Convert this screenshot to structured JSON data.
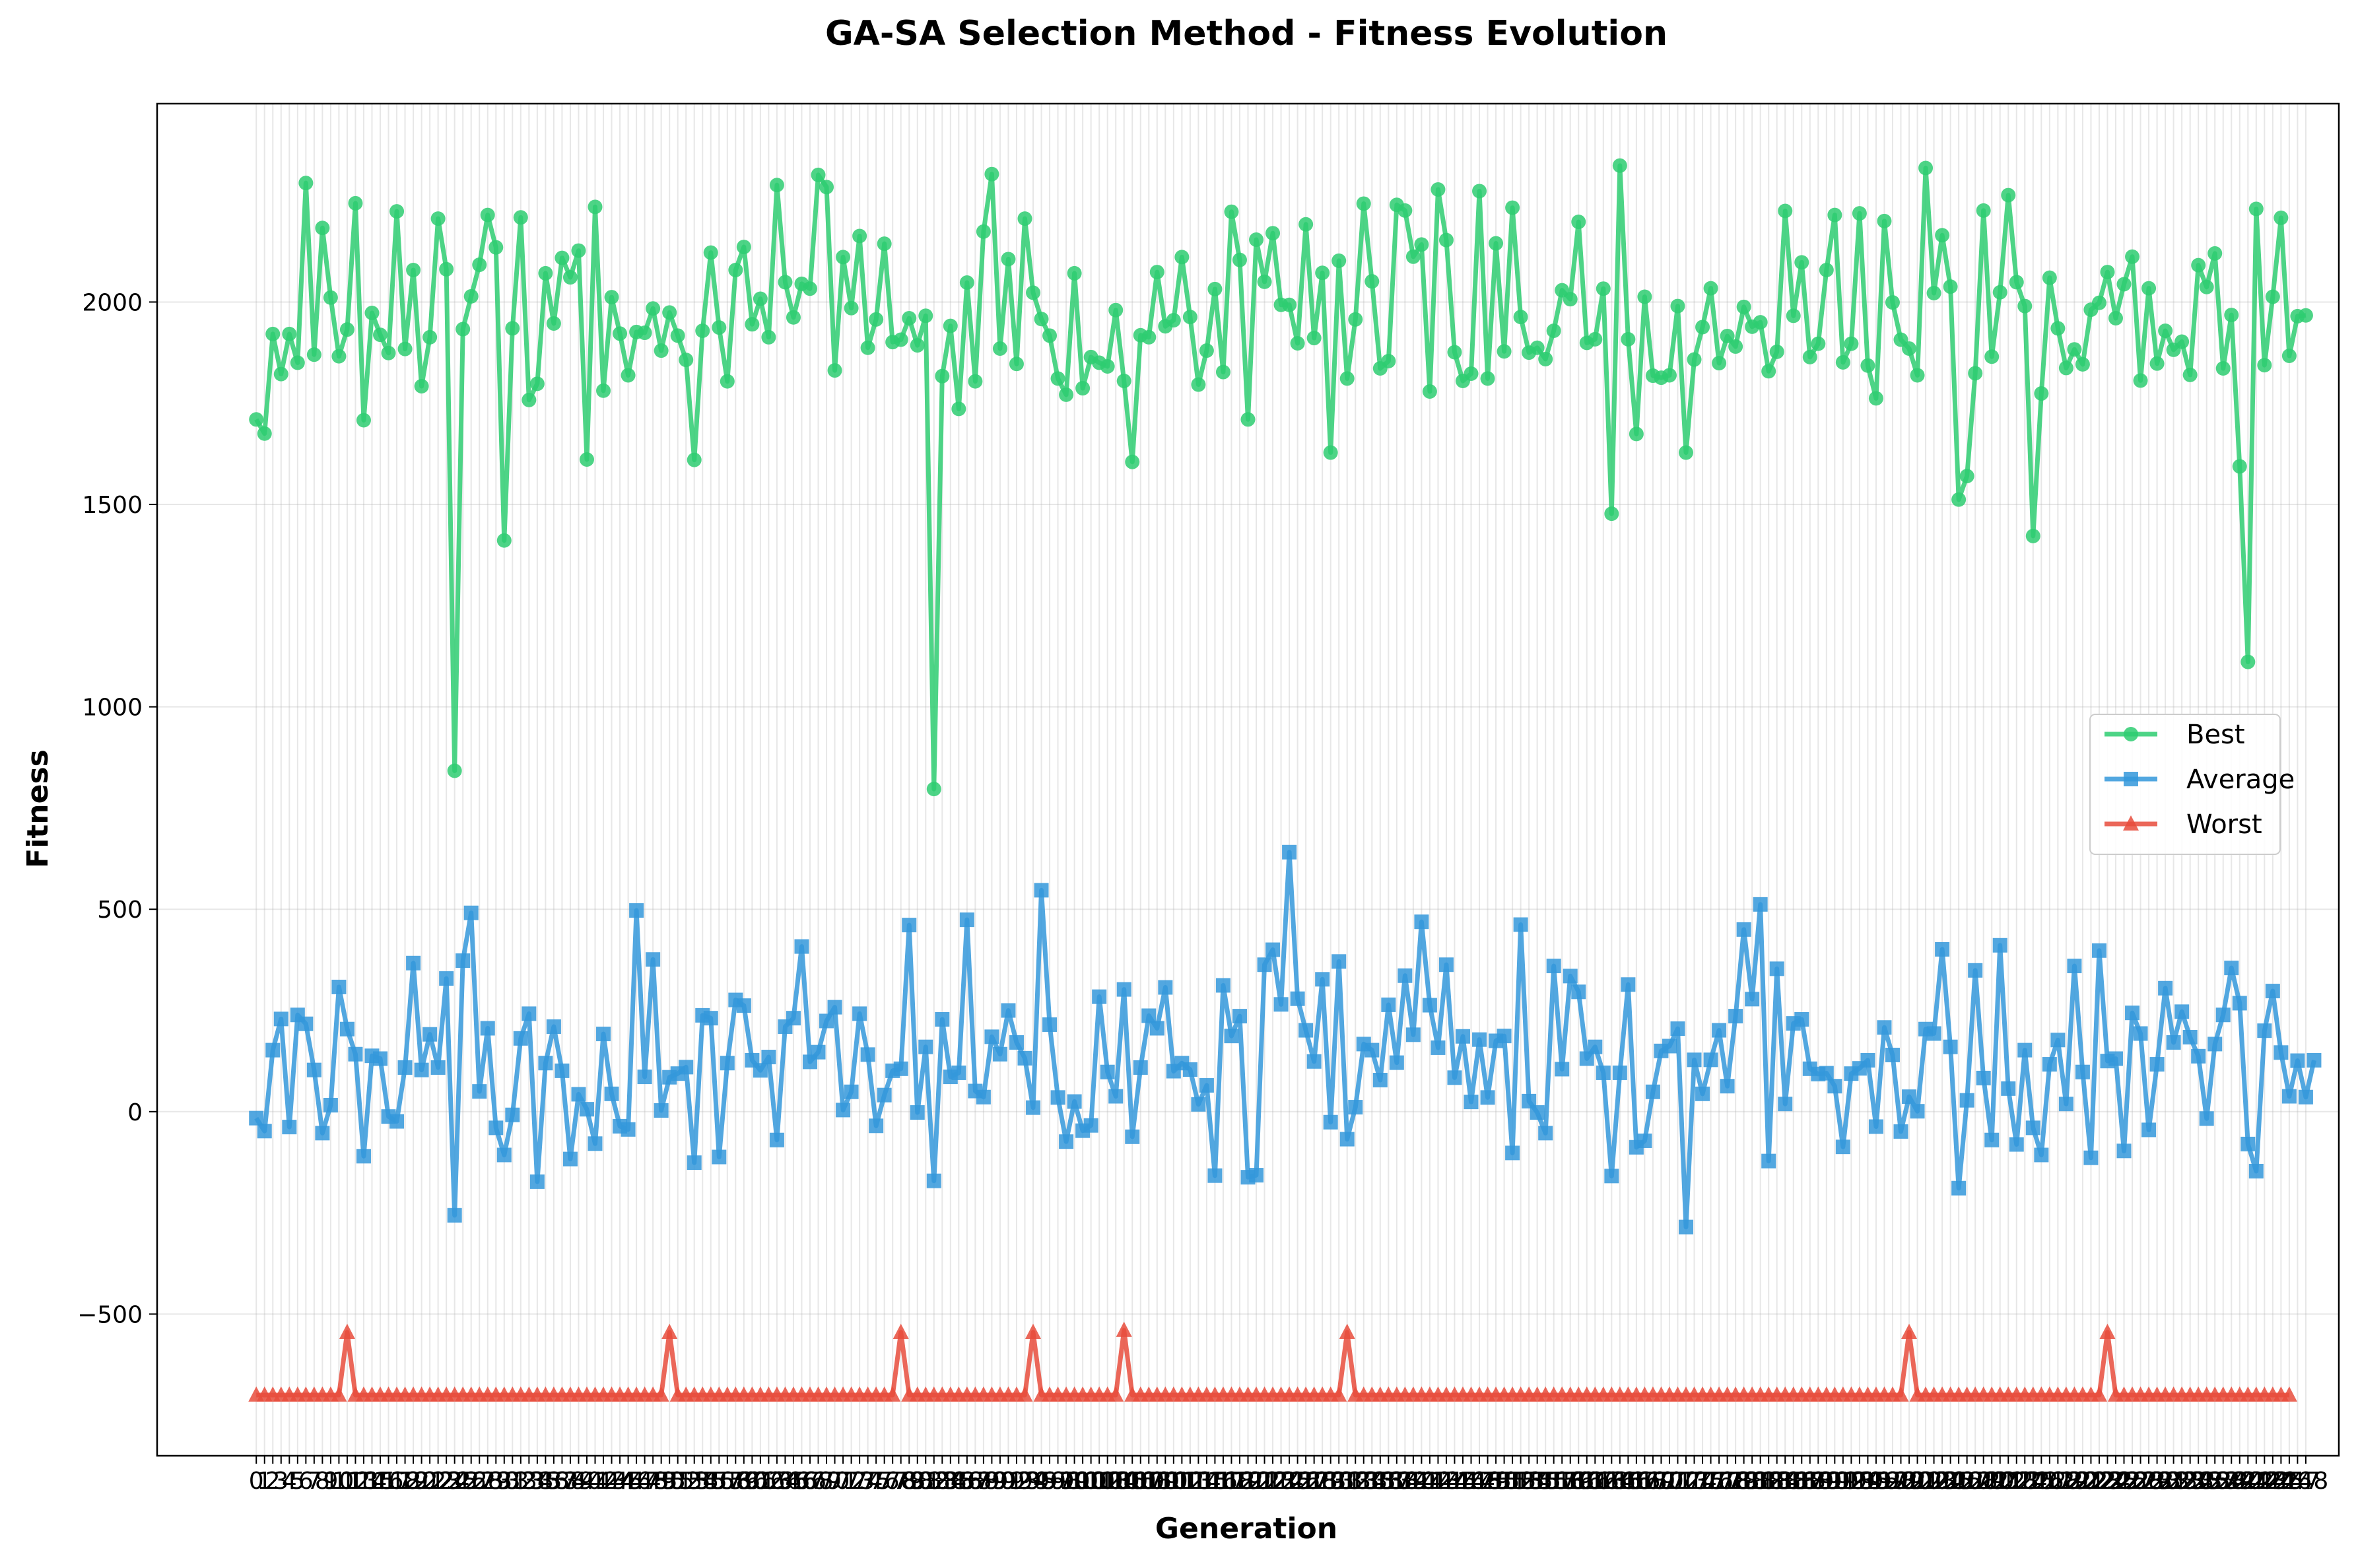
{
  "chart_data": {
    "type": "line",
    "title": "GA-SA Selection Method - Fitness Evolution",
    "xlabel": "Generation",
    "ylabel": "Fitness",
    "xlim": [
      -12,
      252
    ],
    "ylim": [
      -850,
      2490
    ],
    "yticks": [
      -500,
      0,
      500,
      1000,
      1500,
      2000
    ],
    "ytick_labels": [
      "−500",
      "0",
      "500",
      "1000",
      "1500",
      "2000"
    ],
    "xtick_every": 1,
    "grid": true,
    "legend_position": "right",
    "series": [
      {
        "name": "Best",
        "color": "#2ecc71",
        "marker": "circle",
        "values": [
          1710,
          1675,
          1921,
          1822,
          1921,
          1850,
          2294,
          1870,
          2183,
          2011,
          1866,
          1932,
          2244,
          1708,
          1973,
          1919,
          1874,
          2224,
          1884,
          2079,
          1792,
          1913,
          2206,
          2081,
          842,
          1933,
          2014,
          2092,
          2215,
          2135,
          1411,
          1935,
          2209,
          1758,
          1798,
          2071,
          1947,
          2109,
          2061,
          2127,
          1611,
          2235,
          1781,
          2012,
          1922,
          1819,
          1926,
          1924,
          1984,
          1880,
          1974,
          1917,
          1857,
          1610,
          1929,
          2122,
          1937,
          1804,
          2079,
          2136,
          1945,
          2008,
          1913,
          2289,
          2049,
          1962,
          2045,
          2033,
          2314,
          2284,
          1831,
          2111,
          1985,
          2163,
          1887,
          1957,
          2144,
          1901,
          1907,
          1960,
          1893,
          1966,
          797,
          1817,
          1941,
          1736,
          2048,
          1804,
          2174,
          2316,
          1885,
          2106,
          1847,
          2206,
          2023,
          1958,
          1917,
          1811,
          1771,
          2071,
          1787,
          1864,
          1850,
          1841,
          1980,
          1805,
          1605,
          1918,
          1913,
          2074,
          1940,
          1955,
          2111,
          1963,
          1796,
          1880,
          2032,
          1827,
          2223,
          2104,
          1710,
          2154,
          2050,
          2170,
          1993,
          1993,
          1898,
          2192,
          1911,
          2072,
          1628,
          2102,
          1811,
          1957,
          2243,
          2051,
          1836,
          1854,
          2240,
          2226,
          2112,
          2142,
          1779,
          2278,
          2153,
          1876,
          1805,
          1823,
          2274,
          1811,
          2145,
          1878,
          2233,
          1963,
          1875,
          1887,
          1859,
          1929,
          2029,
          2007,
          2198,
          1899,
          1908,
          2033,
          1477,
          2337,
          1908,
          1674,
          2013,
          1818,
          1813,
          1819,
          1990,
          1628,
          1858,
          1938,
          2034,
          1849,
          1916,
          1890,
          1988,
          1939,
          1950,
          1829,
          1877,
          2225,
          1966,
          2098,
          1864,
          1897,
          2079,
          2215,
          1851,
          1897,
          2219,
          1843,
          1762,
          2200,
          1999,
          1907,
          1885,
          1819,
          2331,
          2022,
          2165,
          2038,
          1512,
          1570,
          1824,
          2226,
          1865,
          2024,
          2264,
          2049,
          1990,
          1422,
          1774,
          2060,
          1935,
          1837,
          1883,
          1846,
          1981,
          1998,
          2074,
          1960,
          2044,
          2112,
          1806,
          2034,
          1848,
          1929,
          1882,
          1902,
          1820,
          2091,
          2037,
          2120,
          1836,
          1968,
          1594,
          1111,
          2230,
          1844,
          2013,
          2208,
          1867,
          1965,
          1967
        ]
      },
      {
        "name": "Average",
        "color": "#3498db",
        "marker": "square",
        "values": [
          -16,
          -48,
          152,
          229,
          -38,
          239,
          217,
          103,
          -53,
          16,
          308,
          204,
          142,
          -110,
          138,
          131,
          -12,
          -24,
          109,
          367,
          103,
          191,
          109,
          329,
          -256,
          373,
          491,
          50,
          206,
          -40,
          -107,
          -8,
          181,
          242,
          -173,
          120,
          210,
          101,
          -117,
          43,
          6,
          -79,
          192,
          44,
          -36,
          -44,
          497,
          86,
          376,
          3,
          85,
          94,
          110,
          -126,
          238,
          231,
          -112,
          120,
          276,
          262,
          127,
          102,
          135,
          -70,
          210,
          231,
          408,
          123,
          147,
          224,
          258,
          4,
          49,
          242,
          141,
          -35,
          41,
          101,
          106,
          461,
          -2,
          160,
          -171,
          228,
          86,
          96,
          474,
          51,
          36,
          185,
          142,
          250,
          171,
          132,
          10,
          547,
          215,
          35,
          -74,
          25,
          -47,
          -34,
          284,
          98,
          38,
          302,
          -62,
          109,
          237,
          206,
          307,
          100,
          120,
          104,
          18,
          65,
          -158,
          312,
          187,
          236,
          -162,
          -157,
          363,
          400,
          265,
          641,
          279,
          201,
          124,
          327,
          -26,
          371,
          -68,
          11,
          167,
          152,
          78,
          264,
          121,
          336,
          190,
          469,
          263,
          158,
          363,
          84,
          186,
          24,
          178,
          35,
          175,
          187,
          -102,
          462,
          26,
          -2,
          -53,
          360,
          105,
          335,
          296,
          131,
          160,
          96,
          -159,
          96,
          314,
          -88,
          -72,
          49,
          150,
          162,
          205,
          -285,
          128,
          44,
          128,
          201,
          63,
          236,
          450,
          278,
          512,
          -122,
          353,
          19,
          218,
          228,
          106,
          93,
          95,
          63,
          -87,
          94,
          107,
          127,
          -37,
          208,
          140,
          -49,
          37,
          1,
          204,
          193,
          401,
          160,
          -189,
          28,
          349,
          83,
          -70,
          411,
          57,
          -81,
          152,
          -40,
          -107,
          117,
          177,
          19,
          360,
          98,
          -114,
          398,
          125,
          131,
          -97,
          244,
          193,
          -45,
          117,
          305,
          171,
          247,
          184,
          137,
          -17,
          167,
          239,
          355,
          268,
          -80,
          -147,
          200,
          298,
          146,
          38,
          126,
          36,
          127
        ]
      },
      {
        "name": "Worst",
        "color": "#e74c3c",
        "marker": "triangle",
        "values": [
          -700,
          -700,
          -700,
          -700,
          -700,
          -700,
          -700,
          -700,
          -700,
          -700,
          -700,
          -545,
          -700,
          -700,
          -700,
          -700,
          -700,
          -700,
          -700,
          -700,
          -700,
          -700,
          -700,
          -700,
          -700,
          -700,
          -700,
          -700,
          -700,
          -700,
          -700,
          -700,
          -700,
          -700,
          -700,
          -700,
          -700,
          -700,
          -700,
          -700,
          -700,
          -700,
          -700,
          -700,
          -700,
          -700,
          -700,
          -700,
          -700,
          -700,
          -545,
          -700,
          -700,
          -700,
          -700,
          -700,
          -700,
          -700,
          -700,
          -700,
          -700,
          -700,
          -700,
          -700,
          -700,
          -700,
          -700,
          -700,
          -700,
          -700,
          -700,
          -700,
          -700,
          -700,
          -700,
          -700,
          -700,
          -700,
          -545,
          -700,
          -700,
          -700,
          -700,
          -700,
          -700,
          -700,
          -700,
          -700,
          -700,
          -700,
          -700,
          -700,
          -700,
          -700,
          -545,
          -700,
          -700,
          -700,
          -700,
          -700,
          -700,
          -700,
          -700,
          -700,
          -700,
          -540,
          -700,
          -700,
          -700,
          -700,
          -700,
          -700,
          -700,
          -700,
          -700,
          -700,
          -700,
          -700,
          -700,
          -700,
          -700,
          -700,
          -700,
          -700,
          -700,
          -700,
          -700,
          -700,
          -700,
          -700,
          -700,
          -700,
          -545,
          -700,
          -700,
          -700,
          -700,
          -700,
          -700,
          -700,
          -700,
          -700,
          -700,
          -700,
          -700,
          -700,
          -700,
          -700,
          -700,
          -700,
          -700,
          -700,
          -700,
          -700,
          -700,
          -700,
          -700,
          -700,
          -700,
          -700,
          -700,
          -700,
          -700,
          -700,
          -700,
          -700,
          -700,
          -700,
          -700,
          -700,
          -700,
          -700,
          -700,
          -700,
          -700,
          -700,
          -700,
          -700,
          -700,
          -700,
          -700,
          -700,
          -700,
          -700,
          -700,
          -700,
          -700,
          -700,
          -700,
          -700,
          -700,
          -700,
          -700,
          -700,
          -700,
          -700,
          -700,
          -700,
          -700,
          -700,
          -545,
          -700,
          -700,
          -700,
          -700,
          -700,
          -700,
          -700,
          -700,
          -700,
          -700,
          -700,
          -700,
          -700,
          -700,
          -700,
          -700,
          -700,
          -700,
          -700,
          -700,
          -700,
          -700,
          -700,
          -545,
          -700,
          -700,
          -700,
          -700,
          -700,
          -700,
          -700,
          -700,
          -700,
          -700,
          -700,
          -700,
          -700,
          -700,
          -700,
          -700,
          -700,
          -700,
          -700,
          -700,
          -700,
          -700
        ]
      }
    ]
  }
}
